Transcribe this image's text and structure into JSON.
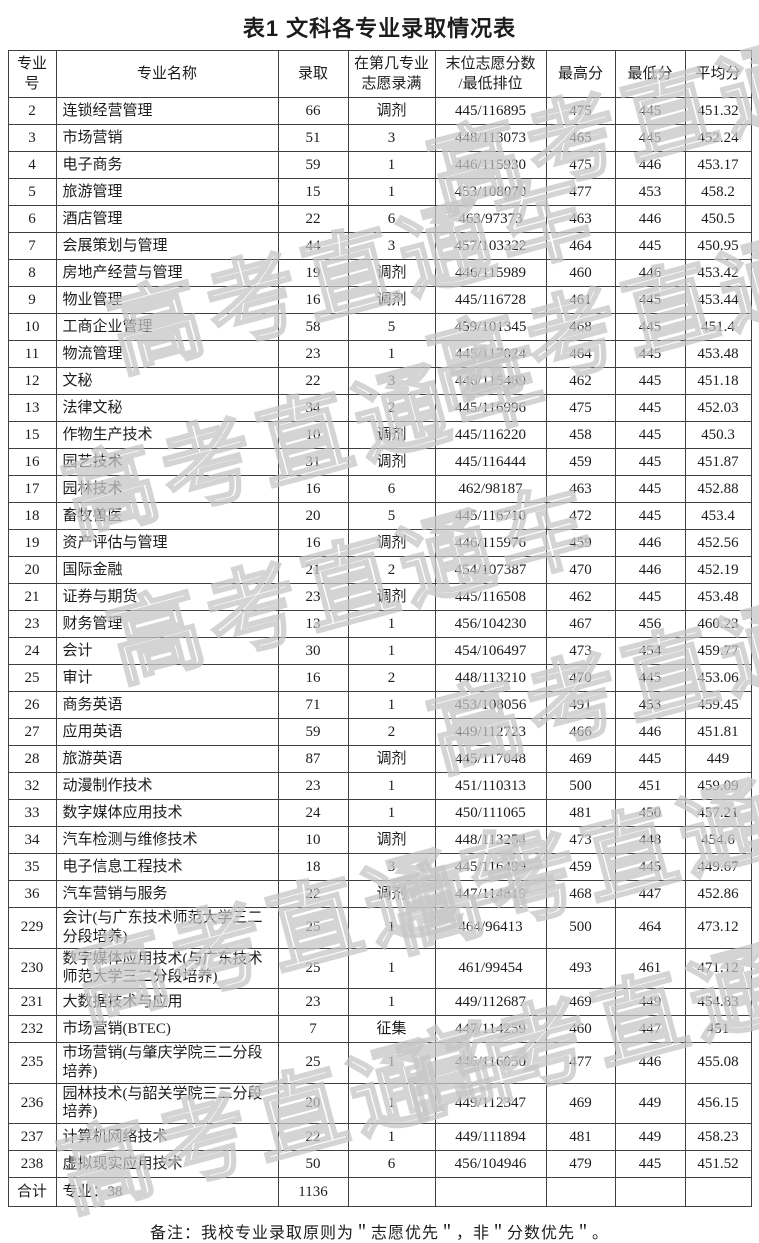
{
  "page": {
    "title": "表1 文科各专业录取情况表",
    "note": "备注：我校专业录取原则为＂志愿优先＂，非＂分数优先＂。",
    "watermark_text": "高考直通车"
  },
  "chart_data": {
    "type": "table",
    "title": "表1 文科各专业录取情况表",
    "columns": [
      "专业号",
      "专业名称",
      "录取",
      "在第几专业\n志愿录满",
      "末位志愿分数\n/最低排位",
      "最高分",
      "最低分",
      "平均分"
    ],
    "rows": [
      [
        "2",
        "连锁经营管理",
        "66",
        "调剂",
        "445/116895",
        "475",
        "445",
        "451.32"
      ],
      [
        "3",
        "市场营销",
        "51",
        "3",
        "448/113073",
        "465",
        "445",
        "452.24"
      ],
      [
        "4",
        "电子商务",
        "59",
        "1",
        "446/115930",
        "475",
        "446",
        "453.17"
      ],
      [
        "5",
        "旅游管理",
        "15",
        "1",
        "453/108070",
        "477",
        "453",
        "458.2"
      ],
      [
        "6",
        "酒店管理",
        "22",
        "6",
        "463/97373",
        "463",
        "446",
        "450.5"
      ],
      [
        "7",
        "会展策划与管理",
        "44",
        "3",
        "457/103322",
        "464",
        "445",
        "450.95"
      ],
      [
        "8",
        "房地产经营与管理",
        "19",
        "调剂",
        "446/115989",
        "460",
        "446",
        "453.42"
      ],
      [
        "9",
        "物业管理",
        "16",
        "调剂",
        "445/116728",
        "461",
        "445",
        "453.44"
      ],
      [
        "10",
        "工商企业管理",
        "58",
        "5",
        "459/101345",
        "468",
        "445",
        "451.4"
      ],
      [
        "11",
        "物流管理",
        "23",
        "1",
        "445/117024",
        "464",
        "445",
        "453.48"
      ],
      [
        "12",
        "文秘",
        "22",
        "3",
        "446/115489",
        "462",
        "445",
        "451.18"
      ],
      [
        "13",
        "法律文秘",
        "34",
        "2",
        "445/116996",
        "475",
        "445",
        "452.03"
      ],
      [
        "15",
        "作物生产技术",
        "10",
        "调剂",
        "445/116220",
        "458",
        "445",
        "450.3"
      ],
      [
        "16",
        "园艺技术",
        "31",
        "调剂",
        "445/116444",
        "459",
        "445",
        "451.87"
      ],
      [
        "17",
        "园林技术",
        "16",
        "6",
        "462/98187",
        "463",
        "445",
        "452.88"
      ],
      [
        "18",
        "畜牧兽医",
        "20",
        "5",
        "445/116710",
        "472",
        "445",
        "453.4"
      ],
      [
        "19",
        "资产评估与管理",
        "16",
        "调剂",
        "446/115976",
        "459",
        "446",
        "452.56"
      ],
      [
        "20",
        "国际金融",
        "21",
        "2",
        "454/107387",
        "470",
        "446",
        "452.19"
      ],
      [
        "21",
        "证券与期货",
        "23",
        "调剂",
        "445/116508",
        "462",
        "445",
        "453.48"
      ],
      [
        "23",
        "财务管理",
        "13",
        "1",
        "456/104230",
        "467",
        "456",
        "460.23"
      ],
      [
        "24",
        "会计",
        "30",
        "1",
        "454/106497",
        "473",
        "454",
        "459.77"
      ],
      [
        "25",
        "审计",
        "16",
        "2",
        "448/113210",
        "470",
        "445",
        "453.06"
      ],
      [
        "26",
        "商务英语",
        "71",
        "1",
        "453/108056",
        "491",
        "453",
        "459.45"
      ],
      [
        "27",
        "应用英语",
        "59",
        "2",
        "449/112723",
        "466",
        "446",
        "451.81"
      ],
      [
        "28",
        "旅游英语",
        "87",
        "调剂",
        "445/117048",
        "469",
        "445",
        "449"
      ],
      [
        "32",
        "动漫制作技术",
        "23",
        "1",
        "451/110313",
        "500",
        "451",
        "459.09"
      ],
      [
        "33",
        "数字媒体应用技术",
        "24",
        "1",
        "450/111065",
        "481",
        "450",
        "457.21"
      ],
      [
        "34",
        "汽车检测与维修技术",
        "10",
        "调剂",
        "448/113254",
        "473",
        "448",
        "454.6"
      ],
      [
        "35",
        "电子信息工程技术",
        "18",
        "3",
        "445/116499",
        "459",
        "445",
        "449.67"
      ],
      [
        "36",
        "汽车营销与服务",
        "22",
        "调剂",
        "447/114819",
        "468",
        "447",
        "452.86"
      ],
      [
        "229",
        "会计(与广东技术师范大学三二分段培养)",
        "25",
        "1",
        "464/96413",
        "500",
        "464",
        "473.12"
      ],
      [
        "230",
        "数字媒体应用技术(与广东技术师范大学三二分段培养)",
        "25",
        "1",
        "461/99454",
        "493",
        "461",
        "471.12"
      ],
      [
        "231",
        "大数据技术与应用",
        "23",
        "1",
        "449/112687",
        "469",
        "449",
        "454.83"
      ],
      [
        "232",
        "市场营销(BTEC)",
        "7",
        "征集",
        "447/114259",
        "460",
        "447",
        "451"
      ],
      [
        "235",
        "市场营销(与肇庆学院三二分段培养)",
        "25",
        "1",
        "446/116050",
        "477",
        "446",
        "455.08"
      ],
      [
        "236",
        "园林技术(与韶关学院三二分段培养)",
        "20",
        "1",
        "449/112347",
        "469",
        "449",
        "456.15"
      ],
      [
        "237",
        "计算机网络技术",
        "22",
        "1",
        "449/111894",
        "481",
        "449",
        "458.23"
      ],
      [
        "238",
        "虚拟现实应用技术",
        "50",
        "6",
        "456/104946",
        "479",
        "445",
        "451.52"
      ]
    ],
    "total_row": [
      "合计",
      "专业：38",
      "1136",
      "",
      "",
      "",
      "",
      ""
    ]
  }
}
